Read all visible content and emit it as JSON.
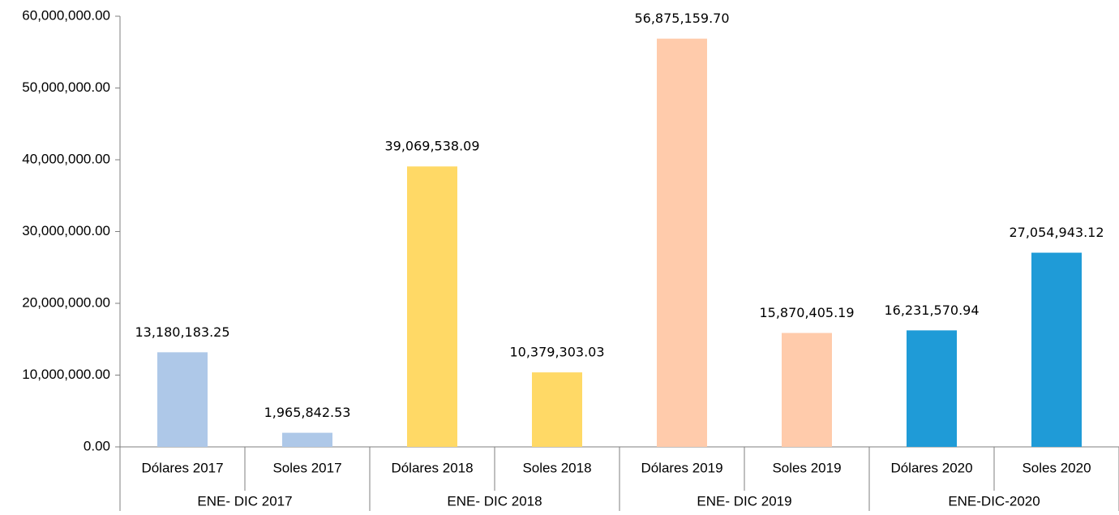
{
  "chart_data": {
    "type": "bar",
    "categories": [
      "Dólares 2017",
      "Soles 2017",
      "Dólares 2018",
      "Soles 2018",
      "Dólares 2019",
      "Soles 2019",
      "Dólares 2020",
      "Soles 2020"
    ],
    "groups": [
      "ENE- DIC 2017",
      "ENE- DIC 2018",
      "ENE- DIC 2019",
      "ENE-DIC-2020"
    ],
    "values": [
      13180183.25,
      1965842.53,
      39069538.09,
      10379303.03,
      56875159.7,
      15870405.19,
      16231570.94,
      27054943.12
    ],
    "value_labels": [
      "13,180,183.25",
      "1,965,842.53",
      "39,069,538.09",
      "10,379,303.03",
      "56,875,159.70",
      "15,870,405.19",
      "16,231,570.94",
      "27,054,943.12"
    ],
    "colors": [
      "#aec8e8",
      "#aec8e8",
      "#ffd966",
      "#ffd966",
      "#ffcbab",
      "#ffcbab",
      "#1f9bd7",
      "#1f9bd7"
    ],
    "ylim": [
      0,
      60000000
    ],
    "yticks": [
      {
        "value": 0,
        "label": "0.00"
      },
      {
        "value": 10000000,
        "label": "10,000,000.00"
      },
      {
        "value": 20000000,
        "label": "20,000,000.00"
      },
      {
        "value": 30000000,
        "label": "30,000,000.00"
      },
      {
        "value": 40000000,
        "label": "40,000,000.00"
      },
      {
        "value": 50000000,
        "label": "50,000,000.00"
      },
      {
        "value": 60000000,
        "label": "60,000,000.00"
      }
    ],
    "grid": false
  }
}
